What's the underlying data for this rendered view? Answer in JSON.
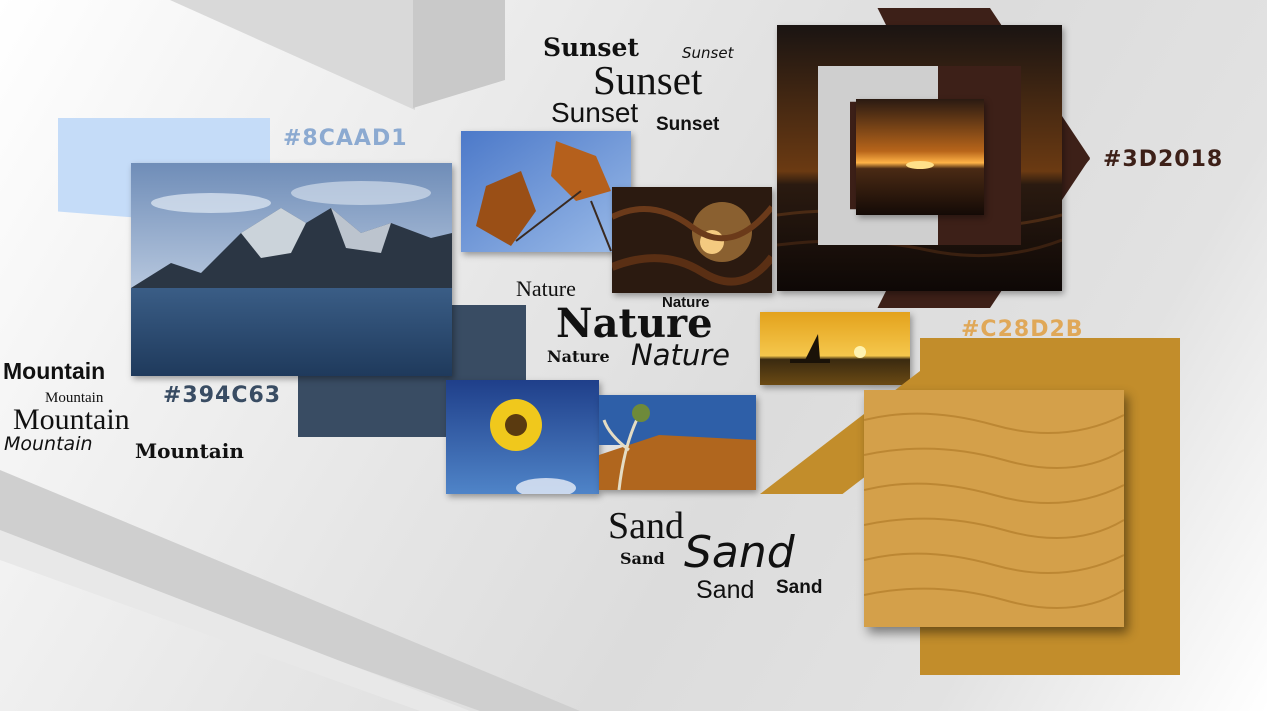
{
  "colors": {
    "light_blue": "#8CAAD1",
    "navy": "#394C63",
    "brown": "#3D2018",
    "gold": "#C28D2B"
  },
  "swatches": {
    "light_blue_label": "#8CAAD1",
    "navy_label": "#394C63",
    "brown_label": "#3D2018",
    "gold_label": "#C28D2B"
  },
  "words": {
    "sunset": [
      "Sunset",
      "Sunset",
      "Sunset",
      "Sunset",
      "Sunset"
    ],
    "nature": [
      "Nature",
      "Nature",
      "Nature",
      "Nature",
      "Nature"
    ],
    "mountain": [
      "Mountain",
      "Mountain",
      "Mountain",
      "Mountain",
      "Mountain"
    ],
    "sand": [
      "Sand",
      "Sand",
      "Sand",
      "Sand",
      "Sand"
    ]
  },
  "images": {
    "mountain": "mountain-lake-photo",
    "leaves": "autumn-leaves-photo",
    "forest": "sunlit-foliage-photo",
    "sunset_large": "ocean-sunset-photo",
    "boat": "river-boat-sunset-photo",
    "sunflower": "sunflower-photo",
    "desert_tree": "desert-tree-photo",
    "sand_texture": "sand-dunes-texture"
  }
}
